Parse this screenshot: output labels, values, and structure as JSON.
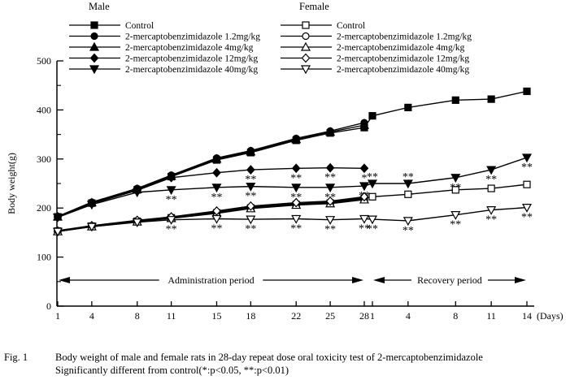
{
  "figure": {
    "fig_label": "Fig. 1",
    "caption_line1": "Body weight of male and female rats in 28-day repeat dose oral toxicity test of 2-mercaptobenzimidazole",
    "caption_line2": "Significantly different from control(*:p<0.05, **:p<0.01)"
  },
  "chart_data": {
    "type": "line",
    "title": "",
    "ylabel": "Body weight(g)",
    "x_unit_label": "(Days)",
    "ylim": [
      0,
      500
    ],
    "y_major_ticks": [
      0,
      100,
      200,
      300,
      400,
      500
    ],
    "y_minor_ticks": [
      50,
      150,
      250,
      350,
      450
    ],
    "grid": "off",
    "line_color": "#000000",
    "admin_days": [
      1,
      4,
      8,
      11,
      15,
      18,
      22,
      25,
      28
    ],
    "recovery_days": [
      1,
      4,
      8,
      11,
      14
    ],
    "periods": [
      {
        "id": "admin",
        "label": "Administration period"
      },
      {
        "id": "recovery",
        "label": "Recovery period"
      }
    ],
    "legend": {
      "groups": [
        {
          "id": "male",
          "title": "Male",
          "filled": true
        },
        {
          "id": "female",
          "title": "Female",
          "filled": false
        }
      ],
      "labels": [
        "Control",
        "2-mercaptobenzimidazole 1.2mg/kg",
        "2-mercaptobenzimidazole 4mg/kg",
        "2-mercaptobenzimidazole 12mg/kg",
        "2-mercaptobenzimidazole 40mg/kg"
      ]
    },
    "series": [
      {
        "name": "male-control",
        "group": "Male",
        "label": "Control",
        "marker": "square",
        "filled": true,
        "admin": [
          182,
          210,
          237,
          264,
          298,
          313,
          338,
          353,
          364
        ],
        "recovery": [
          388,
          405,
          420,
          422,
          438
        ],
        "sig": []
      },
      {
        "name": "male-1.2mg",
        "group": "Male",
        "label": "2-mercaptobenzimidazole 1.2mg/kg",
        "marker": "circle",
        "filled": true,
        "admin": [
          183,
          212,
          240,
          267,
          302,
          317,
          342,
          357,
          374
        ],
        "sig": []
      },
      {
        "name": "male-4mg",
        "group": "Male",
        "label": "2-mercaptobenzimidazole 4mg/kg",
        "marker": "triangle-up",
        "filled": true,
        "admin": [
          182,
          211,
          238,
          265,
          300,
          315,
          340,
          355,
          369
        ],
        "sig": []
      },
      {
        "name": "male-12mg",
        "group": "Male",
        "label": "2-mercaptobenzimidazole 12mg/kg",
        "marker": "diamond",
        "filled": true,
        "admin": [
          182,
          209,
          236,
          262,
          272,
          278,
          281,
          282,
          281
        ],
        "sig": [
          {
            "period": "admin",
            "day": 18,
            "mark": "**",
            "placement": "below"
          },
          {
            "period": "admin",
            "day": 22,
            "mark": "**",
            "placement": "below"
          },
          {
            "period": "admin",
            "day": 25,
            "mark": "**",
            "placement": "below"
          },
          {
            "period": "admin",
            "day": 28,
            "mark": "*",
            "placement": "below"
          }
        ]
      },
      {
        "name": "male-40mg",
        "group": "Male",
        "label": "2-mercaptobenzimidazole 40mg/kg",
        "marker": "triangle-down",
        "filled": true,
        "admin": [
          181,
          207,
          232,
          237,
          242,
          244,
          242,
          242,
          245
        ],
        "recovery": [
          250,
          250,
          262,
          278,
          303
        ],
        "sig": [
          {
            "period": "admin",
            "day": 11,
            "mark": "**",
            "placement": "below"
          },
          {
            "period": "admin",
            "day": 15,
            "mark": "**",
            "placement": "below"
          },
          {
            "period": "admin",
            "day": 18,
            "mark": "**",
            "placement": "below"
          },
          {
            "period": "admin",
            "day": 22,
            "mark": "**",
            "placement": "below"
          },
          {
            "period": "admin",
            "day": 25,
            "mark": "**",
            "placement": "below"
          },
          {
            "period": "admin",
            "day": 28,
            "mark": "**",
            "placement": "below"
          },
          {
            "period": "recovery",
            "day": 1,
            "mark": "**",
            "placement": "above"
          },
          {
            "period": "recovery",
            "day": 4,
            "mark": "**",
            "placement": "above"
          },
          {
            "period": "recovery",
            "day": 8,
            "mark": "**",
            "placement": "below"
          },
          {
            "period": "recovery",
            "day": 11,
            "mark": "**",
            "placement": "below"
          },
          {
            "period": "recovery",
            "day": 14,
            "mark": "**",
            "placement": "below"
          }
        ]
      },
      {
        "name": "female-control",
        "group": "Female",
        "label": "Control",
        "marker": "square",
        "filled": false,
        "admin": [
          153,
          163,
          173,
          180,
          190,
          200,
          207,
          210,
          219
        ],
        "recovery": [
          223,
          228,
          237,
          240,
          248
        ],
        "sig": []
      },
      {
        "name": "female-1.2mg",
        "group": "Female",
        "label": "2-mercaptobenzimidazole 1.2mg/kg",
        "marker": "circle",
        "filled": false,
        "admin": [
          154,
          164,
          174,
          181,
          192,
          202,
          209,
          212,
          221
        ],
        "sig": []
      },
      {
        "name": "female-4mg",
        "group": "Female",
        "label": "2-mercaptobenzimidazole 4mg/kg",
        "marker": "triangle-up",
        "filled": false,
        "admin": [
          152,
          162,
          172,
          179,
          189,
          199,
          206,
          209,
          217
        ],
        "sig": []
      },
      {
        "name": "female-12mg",
        "group": "Female",
        "label": "2-mercaptobenzimidazole 12mg/kg",
        "marker": "diamond",
        "filled": false,
        "admin": [
          153,
          164,
          175,
          182,
          194,
          204,
          211,
          214,
          223
        ],
        "sig": []
      },
      {
        "name": "female-40mg",
        "group": "Female",
        "label": "2-mercaptobenzimidazole 40mg/kg",
        "marker": "triangle-down",
        "filled": false,
        "admin": [
          152,
          162,
          171,
          176,
          178,
          177,
          178,
          176,
          178
        ],
        "recovery": [
          177,
          174,
          186,
          196,
          201
        ],
        "sig": [
          {
            "period": "admin",
            "day": 11,
            "mark": "**",
            "placement": "below"
          },
          {
            "period": "admin",
            "day": 15,
            "mark": "**",
            "placement": "below"
          },
          {
            "period": "admin",
            "day": 18,
            "mark": "**",
            "placement": "below"
          },
          {
            "period": "admin",
            "day": 22,
            "mark": "**",
            "placement": "below"
          },
          {
            "period": "admin",
            "day": 25,
            "mark": "**",
            "placement": "below"
          },
          {
            "period": "admin",
            "day": 28,
            "mark": "**",
            "placement": "below"
          },
          {
            "period": "recovery",
            "day": 1,
            "mark": "**",
            "placement": "below"
          },
          {
            "period": "recovery",
            "day": 4,
            "mark": "**",
            "placement": "below"
          },
          {
            "period": "recovery",
            "day": 8,
            "mark": "**",
            "placement": "below"
          },
          {
            "period": "recovery",
            "day": 11,
            "mark": "**",
            "placement": "below"
          },
          {
            "period": "recovery",
            "day": 14,
            "mark": "**",
            "placement": "below"
          }
        ]
      }
    ]
  }
}
